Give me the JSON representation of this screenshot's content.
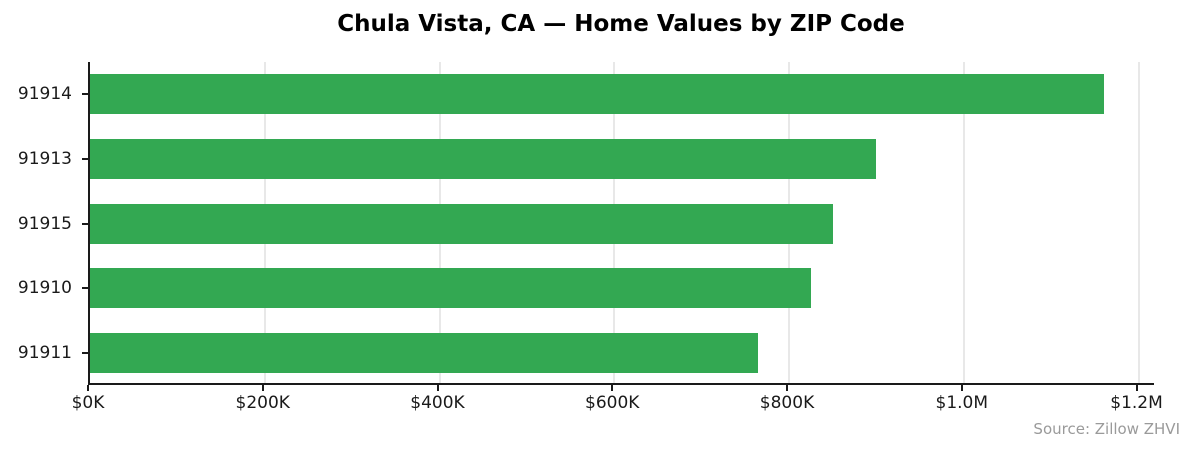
{
  "chart_data": {
    "type": "bar",
    "orientation": "horizontal",
    "title": "Chula Vista, CA — Home Values by ZIP Code",
    "source": "Source: Zillow ZHVI",
    "categories": [
      "91914",
      "91913",
      "91915",
      "91910",
      "91911"
    ],
    "values": [
      1160000,
      900000,
      850000,
      825000,
      765000
    ],
    "xlim": [
      0,
      1220000
    ],
    "x_ticks": [
      {
        "value": 0,
        "label": "$0K"
      },
      {
        "value": 200000,
        "label": "$200K"
      },
      {
        "value": 400000,
        "label": "$400K"
      },
      {
        "value": 600000,
        "label": "$600K"
      },
      {
        "value": 800000,
        "label": "$800K"
      },
      {
        "value": 1000000,
        "label": "$1.0M"
      },
      {
        "value": 1200000,
        "label": "$1.2M"
      }
    ],
    "xlabel": "",
    "ylabel": "",
    "legend": false,
    "grid": true,
    "bar_color": "#33a852",
    "grid_color": "#e8e8e8",
    "axis_color": "#1a1a1a",
    "text_color": "#1a1a1a",
    "source_color": "#9a9a9a",
    "background": "#ffffff"
  }
}
